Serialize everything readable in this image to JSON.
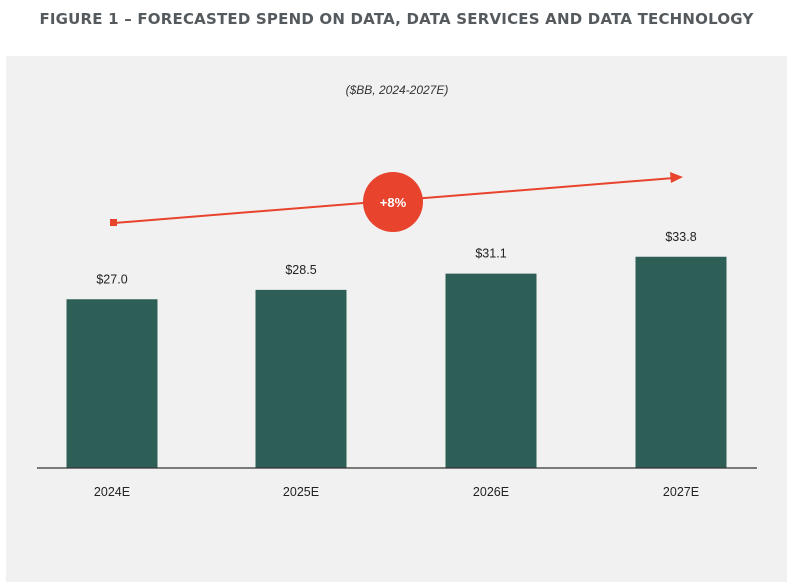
{
  "figure": {
    "title": "FIGURE 1 – FORECASTED SPEND ON DATA, DATA SERVICES AND DATA TECHNOLOGY"
  },
  "chart_data": {
    "type": "bar",
    "subtitle": "($BB, 2024-2027E)",
    "categories": [
      "2024E",
      "2025E",
      "2026E",
      "2027E"
    ],
    "values": [
      27.0,
      28.5,
      31.1,
      33.8
    ],
    "value_labels": [
      "$27.0",
      "$28.5",
      "$31.1",
      "$33.8"
    ],
    "annotation": "+8%",
    "bar_color": "#2d5f57",
    "accent_color": "#e8432d",
    "background": "#f1f1f1",
    "grid": false,
    "legend": "none"
  }
}
